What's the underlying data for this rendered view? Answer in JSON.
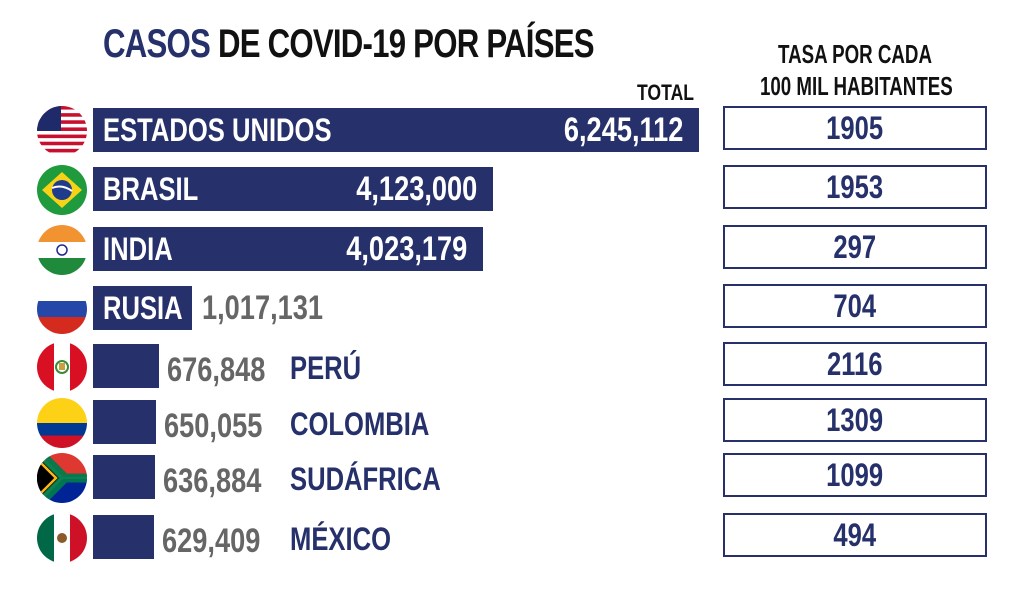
{
  "title": {
    "accent": "CASOS",
    "rest": "DE COVID-19 POR PAÍSES"
  },
  "total_label": "TOTAL",
  "rate_header": [
    "TASA POR CADA",
    "100 MIL HABITANTES"
  ],
  "colors": {
    "bar": "#26306a",
    "rate_text": "#26306a",
    "outside_value": "#666666"
  },
  "chart_data": {
    "type": "bar",
    "orientation": "horizontal",
    "title": "CASOS DE COVID-19 POR PAÍSES",
    "categories": [
      "ESTADOS UNIDOS",
      "BRASIL",
      "INDIA",
      "RUSIA",
      "PERÚ",
      "COLOMBIA",
      "SUDÁFRICA",
      "MÉXICO"
    ],
    "series": [
      {
        "name": "TOTAL",
        "values": [
          6245112,
          4123000,
          4023179,
          1017131,
          676848,
          650055,
          636884,
          629409
        ]
      },
      {
        "name": "TASA POR CADA 100 MIL HABITANTES",
        "values": [
          1905,
          1953,
          297,
          704,
          2116,
          1309,
          1099,
          494
        ]
      }
    ],
    "rows": [
      {
        "country": "ESTADOS UNIDOS",
        "total": 6245112,
        "total_label": "6,245,112",
        "rate": "1905",
        "flag_icon": "usa-flag-icon",
        "label_inside": true
      },
      {
        "country": "BRASIL",
        "total": 4123000,
        "total_label": "4,123,000",
        "rate": "1953",
        "flag_icon": "brazil-flag-icon",
        "label_inside": true
      },
      {
        "country": "INDIA",
        "total": 4023179,
        "total_label": "4,023,179",
        "rate": "297",
        "flag_icon": "india-flag-icon",
        "label_inside": true
      },
      {
        "country": "RUSIA",
        "total": 1017131,
        "total_label": "1,017,131",
        "rate": "704",
        "flag_icon": "russia-flag-icon",
        "label_inside": true
      },
      {
        "country": "PERÚ",
        "total": 676848,
        "total_label": "676,848",
        "rate": "2116",
        "flag_icon": "peru-flag-icon",
        "label_inside": false
      },
      {
        "country": "COLOMBIA",
        "total": 650055,
        "total_label": "650,055",
        "rate": "1309",
        "flag_icon": "colombia-flag-icon",
        "label_inside": false
      },
      {
        "country": "SUDÁFRICA",
        "total": 636884,
        "total_label": "636,884",
        "rate": "1099",
        "flag_icon": "south-africa-flag-icon",
        "label_inside": false
      },
      {
        "country": "MÉXICO",
        "total": 629409,
        "total_label": "629,409",
        "rate": "494",
        "flag_icon": "mexico-flag-icon",
        "label_inside": false
      }
    ]
  }
}
